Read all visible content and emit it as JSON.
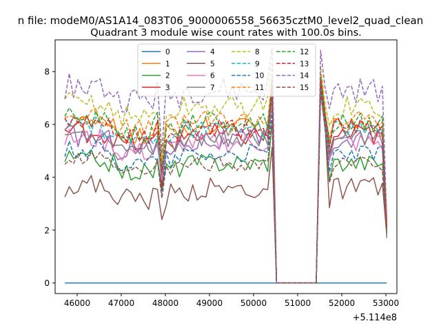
{
  "chart_data": {
    "type": "line",
    "suptitle": "n file: modeM0/AS1A14_083T06_9000006558_56635cztM0_level2_quad_clean",
    "title": "Quadrant 3 module wise count rates with 100.0s bins.",
    "xlabel": "",
    "ylabel": "",
    "x_offset_label": "+5.114e8",
    "xlim": [
      45500,
      53250
    ],
    "ylim": [
      -0.4,
      9.2
    ],
    "xticks": [
      46000,
      47000,
      48000,
      49000,
      50000,
      51000,
      52000,
      53000
    ],
    "xtick_labels": [
      "46000",
      "47000",
      "48000",
      "49000",
      "50000",
      "51000",
      "52000",
      "53000"
    ],
    "yticks": [
      0,
      2,
      4,
      6,
      8
    ],
    "ytick_labels": [
      "0",
      "2",
      "4",
      "6",
      "8"
    ],
    "legend_position": "upper-center",
    "legend_columns": 4,
    "series": [
      {
        "name": "0",
        "color": "#1f77b4",
        "dash": "solid",
        "flat": true
      },
      {
        "name": "1",
        "color": "#ff7f0e",
        "dash": "solid",
        "base": 5.9,
        "amp": 0.35,
        "g1": 4.4,
        "g2": 6.2,
        "pk": 7.9,
        "end": 2.4
      },
      {
        "name": "2",
        "color": "#2ca02c",
        "dash": "solid",
        "base": 4.55,
        "amp": 0.35,
        "g1": 3.5,
        "g2": 5.3,
        "pk": 7.5,
        "end": 1.9
      },
      {
        "name": "3",
        "color": "#d62728",
        "dash": "solid",
        "base": 5.6,
        "amp": 0.45,
        "g1": 3.6,
        "g2": 5.8,
        "pk": 7.8,
        "end": 2.1
      },
      {
        "name": "4",
        "color": "#9467bd",
        "dash": "solid",
        "base": 5.4,
        "amp": 0.45,
        "g1": 3.9,
        "g2": 5.6,
        "pk": 7.4,
        "end": 2.0
      },
      {
        "name": "5",
        "color": "#8c564b",
        "dash": "solid",
        "base": 3.55,
        "amp": 0.45,
        "g1": 2.4,
        "g2": 4.3,
        "pk": 7.4,
        "end": 1.8
      },
      {
        "name": "6",
        "color": "#e377c2",
        "dash": "solid",
        "base": 5.3,
        "amp": 0.4,
        "g1": 3.9,
        "g2": 5.5,
        "pk": 7.2,
        "end": 1.9
      },
      {
        "name": "7",
        "color": "#7f7f7f",
        "dash": "solid",
        "base": 5.5,
        "amp": 0.35,
        "g1": 4.1,
        "g2": 5.7,
        "pk": 7.3,
        "end": 1.7
      },
      {
        "name": "8",
        "color": "#bcbd22",
        "dash": "dashed",
        "base": 6.65,
        "amp": 0.45,
        "g1": 4.6,
        "g2": 6.6,
        "pk": 8.2,
        "end": 2.2
      },
      {
        "name": "9",
        "color": "#17becf",
        "dash": "dashed",
        "base": 5.8,
        "amp": 0.35,
        "g1": 4.2,
        "g2": 6.0,
        "pk": 7.6,
        "end": 2.0
      },
      {
        "name": "10",
        "color": "#1f77b4",
        "dash": "dashed",
        "base": 4.9,
        "amp": 0.35,
        "g1": 3.3,
        "g2": 5.2,
        "pk": 7.4,
        "end": 1.9
      },
      {
        "name": "11",
        "color": "#ff7f0e",
        "dash": "dashed",
        "base": 6.2,
        "amp": 0.35,
        "g1": 4.4,
        "g2": 6.5,
        "pk": 7.9,
        "end": 2.3
      },
      {
        "name": "12",
        "color": "#2ca02c",
        "dash": "dashed",
        "base": 6.1,
        "amp": 0.4,
        "g1": 4.3,
        "g2": 6.4,
        "pk": 7.8,
        "end": 2.0
      },
      {
        "name": "13",
        "color": "#d62728",
        "dash": "dashed",
        "base": 5.85,
        "amp": 0.4,
        "g1": 4.2,
        "g2": 6.2,
        "pk": 7.7,
        "end": 2.1
      },
      {
        "name": "14",
        "color": "#9467bd",
        "dash": "dashed",
        "base": 7.3,
        "amp": 0.5,
        "g1": 4.9,
        "g2": 7.5,
        "pk": 8.8,
        "end": 2.4
      },
      {
        "name": "15",
        "color": "#8c564b",
        "dash": "dashed",
        "base": 4.5,
        "amp": 0.3,
        "g1": 3.2,
        "g2": 5.0,
        "pk": 7.3,
        "end": 1.9
      }
    ]
  }
}
